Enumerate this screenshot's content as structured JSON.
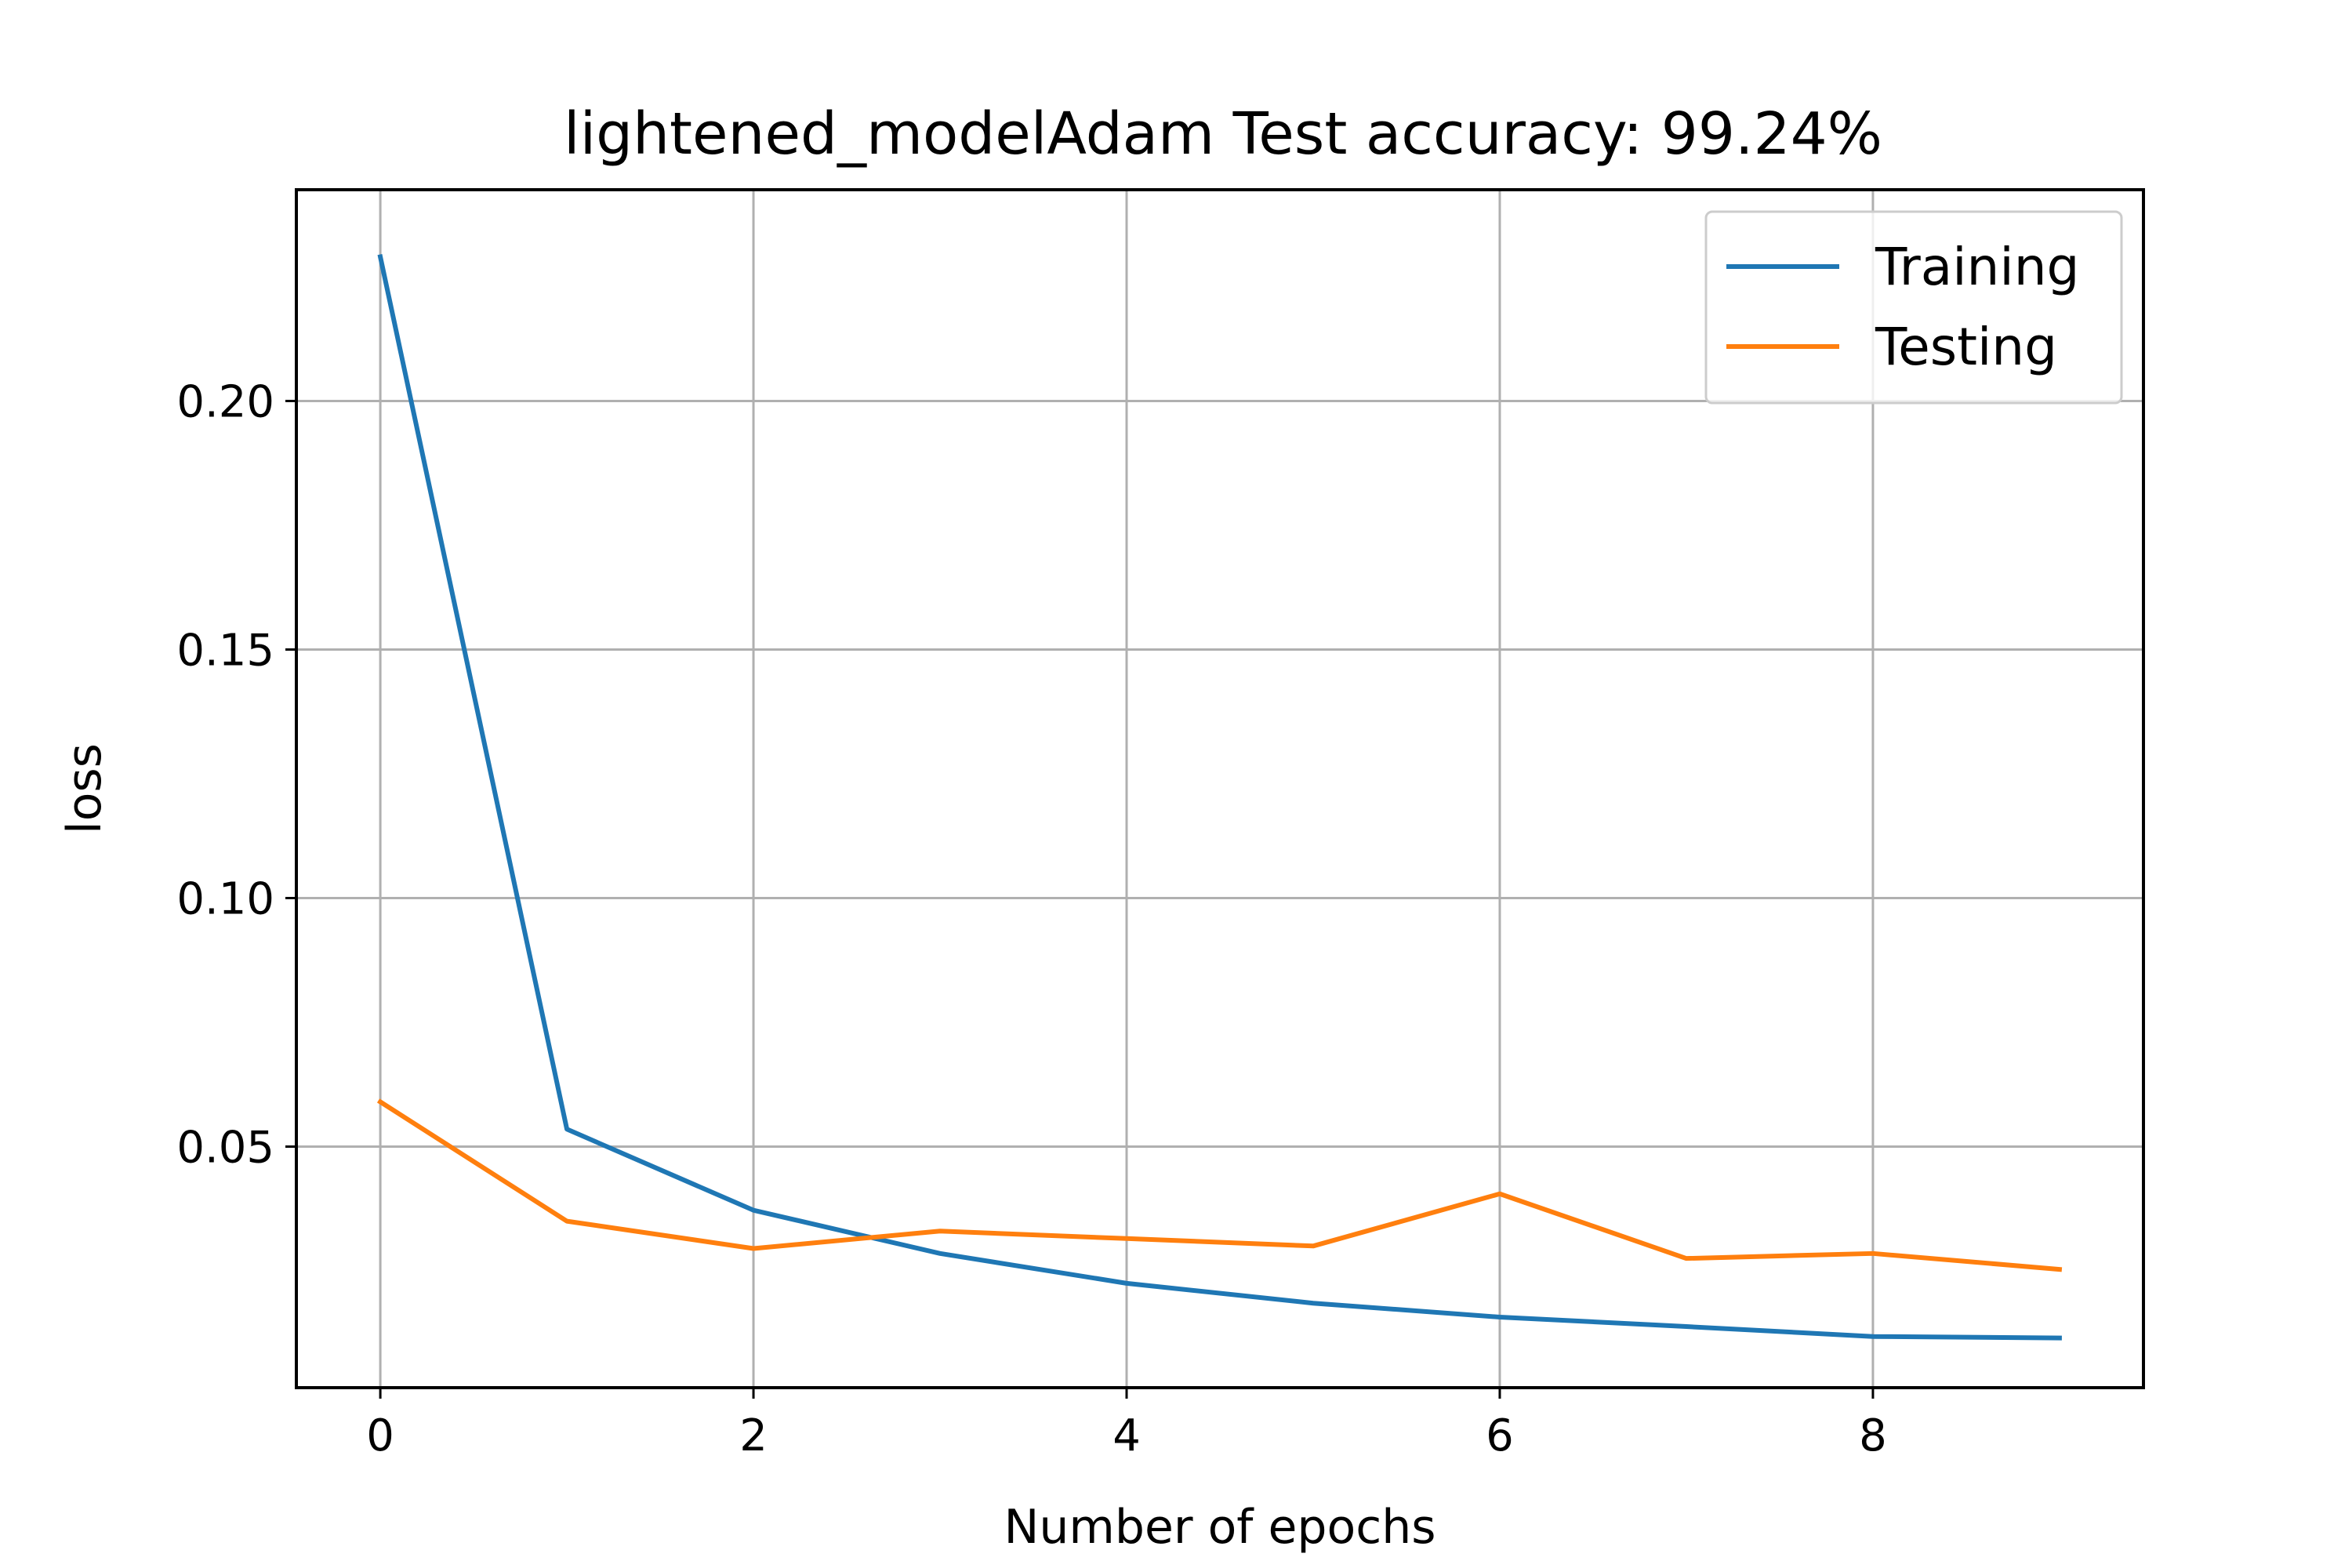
{
  "chart_data": {
    "type": "line",
    "title": "lightened_modelAdam Test accuracy: 99.24%",
    "xlabel": "Number of epochs",
    "ylabel": "loss",
    "x": [
      0,
      1,
      2,
      3,
      4,
      5,
      6,
      7,
      8,
      9
    ],
    "xlim": [
      -0.45,
      9.45
    ],
    "ylim": [
      0.0015,
      0.2425
    ],
    "xticks": [
      0,
      2,
      4,
      6,
      8
    ],
    "yticks": [
      0.05,
      0.1,
      0.15,
      0.2
    ],
    "xtick_labels": [
      "0",
      "2",
      "4",
      "6",
      "8"
    ],
    "ytick_labels": [
      "0.05",
      "0.10",
      "0.15",
      "0.20"
    ],
    "grid": true,
    "legend_position": "top-right",
    "series": [
      {
        "name": "Training",
        "color": "#1f77b4",
        "values": [
          0.229,
          0.0535,
          0.0372,
          0.0285,
          0.0225,
          0.0185,
          0.0157,
          0.0138,
          0.0118,
          0.0115
        ]
      },
      {
        "name": "Testing",
        "color": "#ff7f0e",
        "values": [
          0.059,
          0.035,
          0.0295,
          0.033,
          0.0315,
          0.03,
          0.0405,
          0.0275,
          0.0285,
          0.0253
        ]
      }
    ]
  }
}
